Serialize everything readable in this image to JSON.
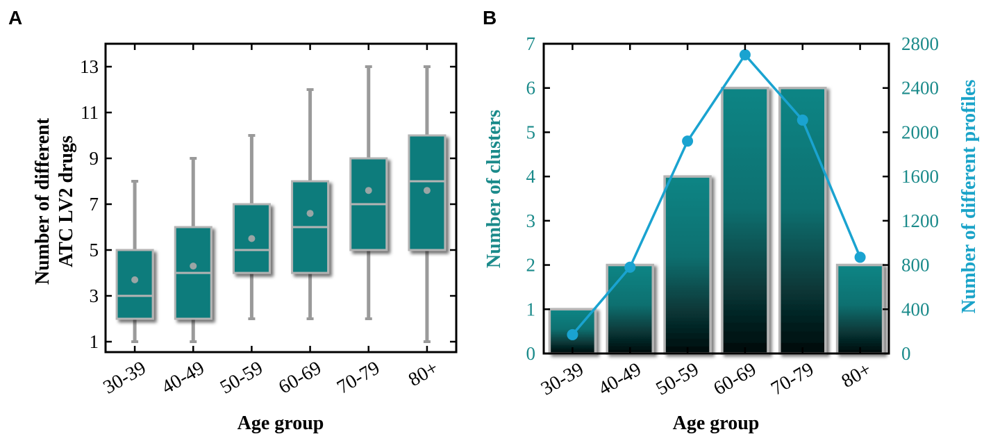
{
  "panels": {
    "a": {
      "letter": "A"
    },
    "b": {
      "letter": "B"
    }
  },
  "colors": {
    "box_fill": "#0a7c7c",
    "box_edge": "#b4b4b4",
    "whisker": "#9a9a9a",
    "mean_dot": "#9aa5a5",
    "bar_top": "#0d8585",
    "bar_bottom": "#050d0d",
    "line": "#1aa3d0",
    "teal_text": "#1a8a8a",
    "blue_text": "#1aa3c8"
  },
  "chart_data": [
    {
      "panel": "A",
      "type": "boxplot",
      "xlabel": "Age group",
      "ylabel": [
        "Number of different",
        "ATC LV2 drugs"
      ],
      "categories": [
        "30-39",
        "40-49",
        "50-59",
        "60-69",
        "70-79",
        "80+"
      ],
      "ylim": [
        0.8,
        14.0
      ],
      "yticks": [
        1,
        3,
        5,
        7,
        9,
        11,
        13
      ],
      "boxes": [
        {
          "whisker_low": 1,
          "q1": 2,
          "median": 3,
          "q3": 5,
          "whisker_high": 8,
          "mean": 3.7
        },
        {
          "whisker_low": 1,
          "q1": 2,
          "median": 4,
          "q3": 6,
          "whisker_high": 9,
          "mean": 4.3
        },
        {
          "whisker_low": 2,
          "q1": 4,
          "median": 5,
          "q3": 7,
          "whisker_high": 10,
          "mean": 5.5
        },
        {
          "whisker_low": 2,
          "q1": 4,
          "median": 6,
          "q3": 8,
          "whisker_high": 12,
          "mean": 6.6
        },
        {
          "whisker_low": 2,
          "q1": 5,
          "median": 7,
          "q3": 9,
          "whisker_high": 13,
          "mean": 7.6
        },
        {
          "whisker_low": 1,
          "q1": 5,
          "median": 8,
          "q3": 10,
          "whisker_high": 13,
          "mean": 7.6
        }
      ]
    },
    {
      "panel": "B",
      "type": "bar+line",
      "xlabel": "Age group",
      "ylabel_left": "Number of clusters",
      "ylabel_right": "Number of different profiles",
      "categories": [
        "30-39",
        "40-49",
        "50-59",
        "60-69",
        "70-79",
        "80+"
      ],
      "ylim_left": [
        0,
        7
      ],
      "yticks_left": [
        0,
        1,
        2,
        3,
        4,
        5,
        6,
        7
      ],
      "ylim_right": [
        0,
        2800
      ],
      "yticks_right": [
        0,
        400,
        800,
        1200,
        1600,
        2000,
        2400,
        2800
      ],
      "series": [
        {
          "name": "Number of clusters",
          "type": "bar",
          "axis": "left",
          "values": [
            1,
            2,
            4,
            6,
            6,
            2
          ]
        },
        {
          "name": "Number of different profiles",
          "type": "line",
          "axis": "right",
          "values": [
            170,
            780,
            1920,
            2700,
            2110,
            870
          ]
        }
      ]
    }
  ]
}
